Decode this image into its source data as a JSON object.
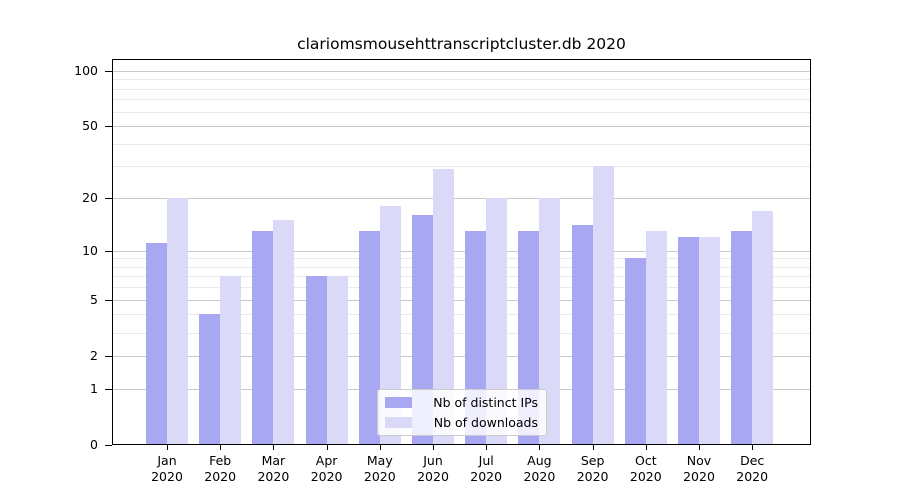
{
  "title": "clariomsmousehttranscriptcluster.db 2020",
  "chart_data": {
    "type": "bar",
    "title": "clariomsmousehttranscriptcluster.db 2020",
    "categories": [
      "Jan",
      "Feb",
      "Mar",
      "Apr",
      "May",
      "Jun",
      "Jul",
      "Aug",
      "Sep",
      "Oct",
      "Nov",
      "Dec"
    ],
    "year": "2020",
    "series": [
      {
        "name": "Nb of distinct IPs",
        "color": "#a8a8f2",
        "values": [
          11,
          4,
          13,
          7,
          13,
          16,
          13,
          13,
          14,
          9,
          12,
          13
        ]
      },
      {
        "name": "Nb of downloads",
        "color": "#dadaf8",
        "values": [
          20,
          7,
          15,
          7,
          18,
          29,
          20,
          20,
          30,
          13,
          12,
          17
        ]
      }
    ],
    "yscale": "log10(1+x)",
    "yticks": [
      0,
      1,
      2,
      5,
      10,
      20,
      50,
      100
    ],
    "yticks_minor": [
      3,
      4,
      6,
      7,
      8,
      9,
      30,
      40,
      60,
      70,
      80,
      90
    ],
    "ylim": [
      0,
      115
    ],
    "grid": true,
    "legend_position": "lower center",
    "colors": {
      "grid_major": "#c9c9c9",
      "grid_minor": "#e9e9e9",
      "axis": "#000000",
      "background": "#ffffff"
    }
  }
}
